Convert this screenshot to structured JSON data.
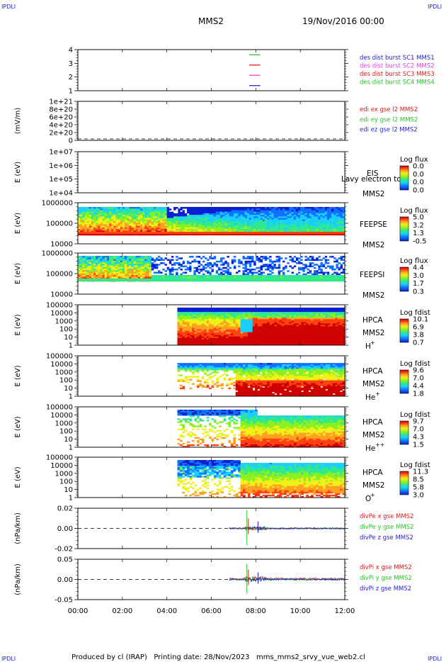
{
  "corner_labels": {
    "top_left": "IPDLI",
    "top_right": "IPDLI",
    "bottom_left": "IPDLI",
    "bottom_right": "IPDLI"
  },
  "header": {
    "mission": "MMS2",
    "date": "19/Nov/2016 00:00"
  },
  "footer": {
    "text": "Produced by cl (IRAP)   Printing date: 28/Nov/2023   mms_mms2_srvy_vue_web2.cl"
  },
  "colors": {
    "blue": "#1f1fc8",
    "magenta": "#e040e0",
    "red": "#e01818",
    "green": "#22c422",
    "colorbar": [
      "#0a20d0",
      "#1070ff",
      "#18d0ff",
      "#30e890",
      "#8cf020",
      "#f0f018",
      "#ffa020",
      "#ff4010",
      "#d00000"
    ]
  },
  "chart_data": {
    "type": "heatmap",
    "x_axis": {
      "ticks": [
        "00:00",
        "02:00",
        "04:00",
        "06:00",
        "08:00",
        "10:00",
        "12:00"
      ],
      "range_hours": [
        0,
        12
      ]
    },
    "panels": [
      {
        "id": "burst",
        "ylabel": "",
        "yticks": [
          "4",
          "3",
          "2",
          "1"
        ],
        "ylim": [
          0.5,
          4.5
        ],
        "legend": [
          {
            "text": "des dist burst SC1 MMS1",
            "color": "#1f1fc8"
          },
          {
            "text": "des dist burst SC2 MMS2",
            "color": "#e040e0"
          },
          {
            "text": "des dist burst SC3 MMS3",
            "color": "#e01818"
          },
          {
            "text": "des dist burst SC4 MMS4",
            "color": "#22c422"
          }
        ],
        "segments": [
          {
            "y": 4,
            "x": [
              7.7,
              8.2
            ],
            "color": "#22c422"
          },
          {
            "y": 3,
            "x": [
              7.7,
              8.2
            ],
            "color": "#e01818"
          },
          {
            "y": 2,
            "x": [
              7.7,
              8.2
            ],
            "color": "#e040e0"
          },
          {
            "y": 1,
            "x": [
              7.7,
              8.2
            ],
            "color": "#1f1fc8"
          }
        ]
      },
      {
        "id": "edi",
        "ylabel": "(mV/m)",
        "yticks": [
          "1e+21",
          "8e+20",
          "6e+20",
          "4e+20",
          "2e+20",
          "0"
        ],
        "legend": [
          {
            "text": "edi ex gse l2 MMS2",
            "color": "#e01818"
          },
          {
            "text": "edi ey gse l2 MMS2",
            "color": "#22c422"
          },
          {
            "text": "edi ez gse l2 MMS2",
            "color": "#1f1fc8"
          }
        ]
      },
      {
        "id": "eis",
        "ylabel": "E (eV)",
        "yticks": [
          "1e+07",
          "1e+06",
          "1e+05",
          "1e+04"
        ],
        "instrument": "EIS",
        "overlap_text": "Lavy electron to",
        "spacecraft": "MMS2",
        "colorbar": {
          "title": "Log flux",
          "labels": [
            "0.0",
            "0.0",
            "0.0",
            "0.0"
          ]
        }
      },
      {
        "id": "feepse",
        "ylabel": "E (eV)",
        "yticks": [
          "1000000",
          "100000",
          "10000"
        ],
        "instrument": "FEEPSE",
        "spacecraft": "MMS2",
        "colorbar": {
          "title": "Log flux",
          "labels": [
            "5.0",
            "3.2",
            "1.3",
            "-0.5"
          ]
        }
      },
      {
        "id": "feepsi",
        "ylabel": "E (eV)",
        "yticks": [
          "1000000",
          "100000",
          "10000"
        ],
        "instrument": "FEEPSI",
        "spacecraft": "MMS2",
        "colorbar": {
          "title": "Log flux",
          "labels": [
            "4.4",
            "3.0",
            "1.7",
            "0.3"
          ]
        }
      },
      {
        "id": "hpca_h",
        "ylabel": "E (eV)",
        "yticks": [
          "100000",
          "10000",
          "1000",
          "100",
          "10",
          "1"
        ],
        "instrument": "HPCA",
        "spacecraft": "MMS2",
        "species": "H",
        "species_sup": "+",
        "colorbar": {
          "title": "Log fdist",
          "labels": [
            "10.1",
            "6.9",
            "3.8",
            "0.7"
          ]
        }
      },
      {
        "id": "hpca_he",
        "ylabel": "E (eV)",
        "yticks": [
          "100000",
          "10000",
          "1000",
          "100",
          "10",
          "1"
        ],
        "instrument": "HPCA",
        "spacecraft": "MMS2",
        "species": "He",
        "species_sup": "+",
        "colorbar": {
          "title": "Log fdist",
          "labels": [
            "9.6",
            "7.0",
            "4.4",
            "1.8"
          ]
        }
      },
      {
        "id": "hpca_hepp",
        "ylabel": "E (eV)",
        "yticks": [
          "100000",
          "10000",
          "1000",
          "100",
          "10",
          "1"
        ],
        "instrument": "HPCA",
        "spacecraft": "MMS2",
        "species": "He",
        "species_sup": "++",
        "colorbar": {
          "title": "Log fdist",
          "labels": [
            "9.7",
            "7.0",
            "4.3",
            "1.5"
          ]
        }
      },
      {
        "id": "hpca_o",
        "ylabel": "E (eV)",
        "yticks": [
          "100000",
          "10000",
          "1000",
          "100",
          "10",
          "1"
        ],
        "instrument": "HPCA",
        "spacecraft": "MMS2",
        "species": "O",
        "species_sup": "+",
        "colorbar": {
          "title": "Log fdist",
          "labels": [
            "11.3",
            "8.5",
            "5.8",
            "3.0"
          ]
        }
      },
      {
        "id": "divpe",
        "ylabel": "(nPa/km)",
        "yticks": [
          "0.02",
          "0.00",
          "-0.02"
        ],
        "ylim": [
          -0.03,
          0.03
        ],
        "legend": [
          {
            "text": "divPe x gse MMS2",
            "color": "#e01818"
          },
          {
            "text": "divPe y gse MMS2",
            "color": "#22c422"
          },
          {
            "text": "divPe z gse MMS2",
            "color": "#1f1fc8"
          }
        ]
      },
      {
        "id": "divpi",
        "ylabel": "(nPa/km)",
        "yticks": [
          "0.05",
          "0.00",
          "-0.05"
        ],
        "ylim": [
          -0.075,
          0.075
        ],
        "legend": [
          {
            "text": "divPi x gse MMS2",
            "color": "#e01818"
          },
          {
            "text": "divPi y gse MMS2",
            "color": "#22c422"
          },
          {
            "text": "divPi z gse MMS2",
            "color": "#1f1fc8"
          }
        ]
      }
    ]
  }
}
